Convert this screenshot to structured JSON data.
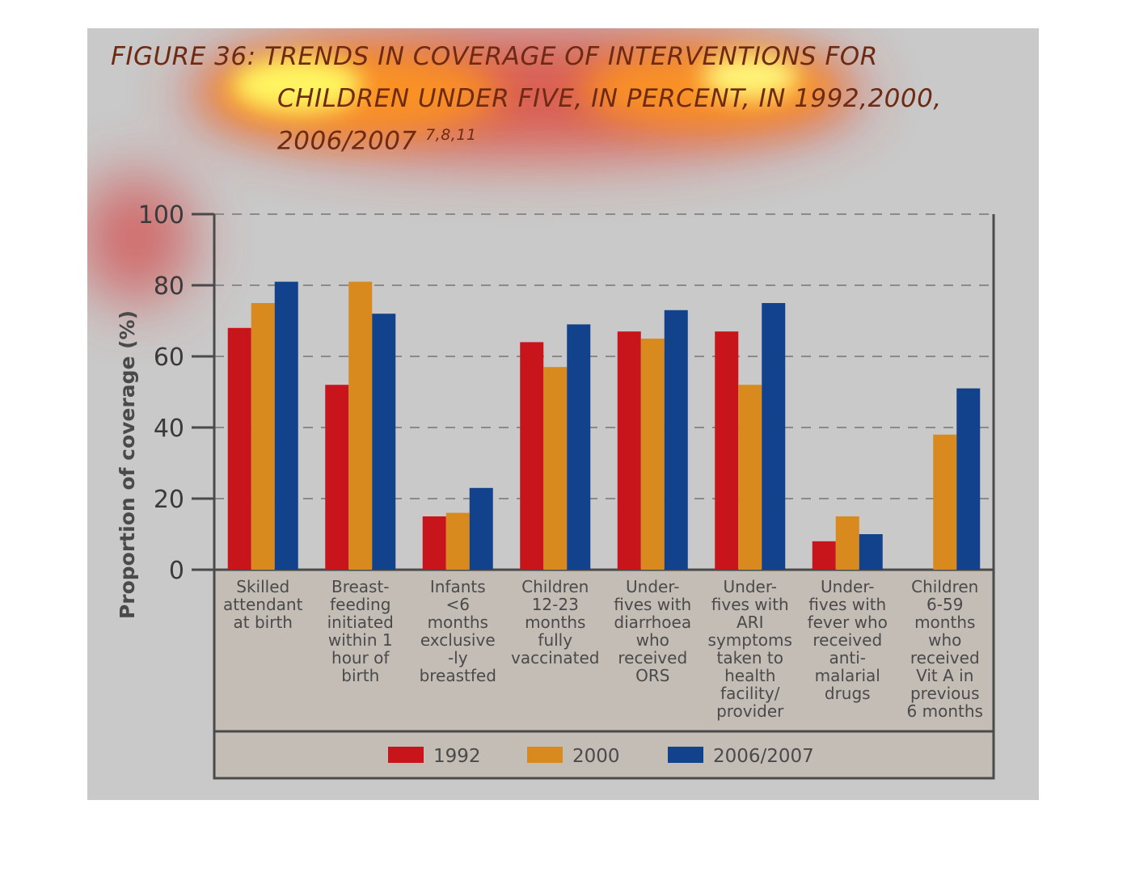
{
  "figure": {
    "title_lines": [
      "FIGURE 36: TRENDS IN COVERAGE OF INTERVENTIONS FOR",
      "CHILDREN UNDER FIVE, IN PERCENT, IN 1992,2000,",
      "2006/2007"
    ],
    "title_superscript": "7,8,11"
  },
  "chart_data": {
    "type": "bar",
    "title": "FIGURE 36: TRENDS IN COVERAGE OF INTERVENTIONS FOR CHILDREN UNDER FIVE, IN PERCENT, IN 1992,2000, 2006/2007",
    "ylabel": "Proportion of coverage (%)",
    "xlabel": "",
    "ylim": [
      0,
      100
    ],
    "yticks": [
      0,
      20,
      40,
      60,
      80,
      100
    ],
    "grid": "horizontal-dashed",
    "legend_position": "bottom",
    "categories": [
      [
        "Skilled",
        "attendant",
        "at birth"
      ],
      [
        "Breast-",
        "feeding",
        "initiated",
        "within 1",
        "hour of",
        "birth"
      ],
      [
        "Infants",
        "<6",
        "months",
        "exclusive",
        "-ly",
        "breastfed"
      ],
      [
        "Children",
        "12-23",
        "months",
        "fully",
        "vaccinated"
      ],
      [
        "Under-",
        "fives with",
        "diarrhoea",
        "who",
        "received",
        "ORS"
      ],
      [
        "Under-",
        "fives with",
        "ARI",
        "symptoms",
        "taken to",
        "health",
        "facility/",
        "provider"
      ],
      [
        "Under-",
        "fives with",
        "fever who",
        "received",
        "anti-",
        "malarial",
        "drugs"
      ],
      [
        "Children",
        "6-59",
        "months",
        "who",
        "received",
        "Vit A in",
        "previous",
        "6 months"
      ]
    ],
    "series": [
      {
        "name": "1992",
        "color": "#c8151c",
        "values": [
          68,
          52,
          15,
          64,
          67,
          67,
          8,
          null
        ]
      },
      {
        "name": "2000",
        "color": "#d98a1e",
        "values": [
          75,
          81,
          16,
          57,
          65,
          52,
          15,
          38
        ]
      },
      {
        "name": "2006/2007",
        "color": "#12428c",
        "values": [
          81,
          72,
          23,
          69,
          73,
          75,
          10,
          51
        ]
      }
    ]
  }
}
